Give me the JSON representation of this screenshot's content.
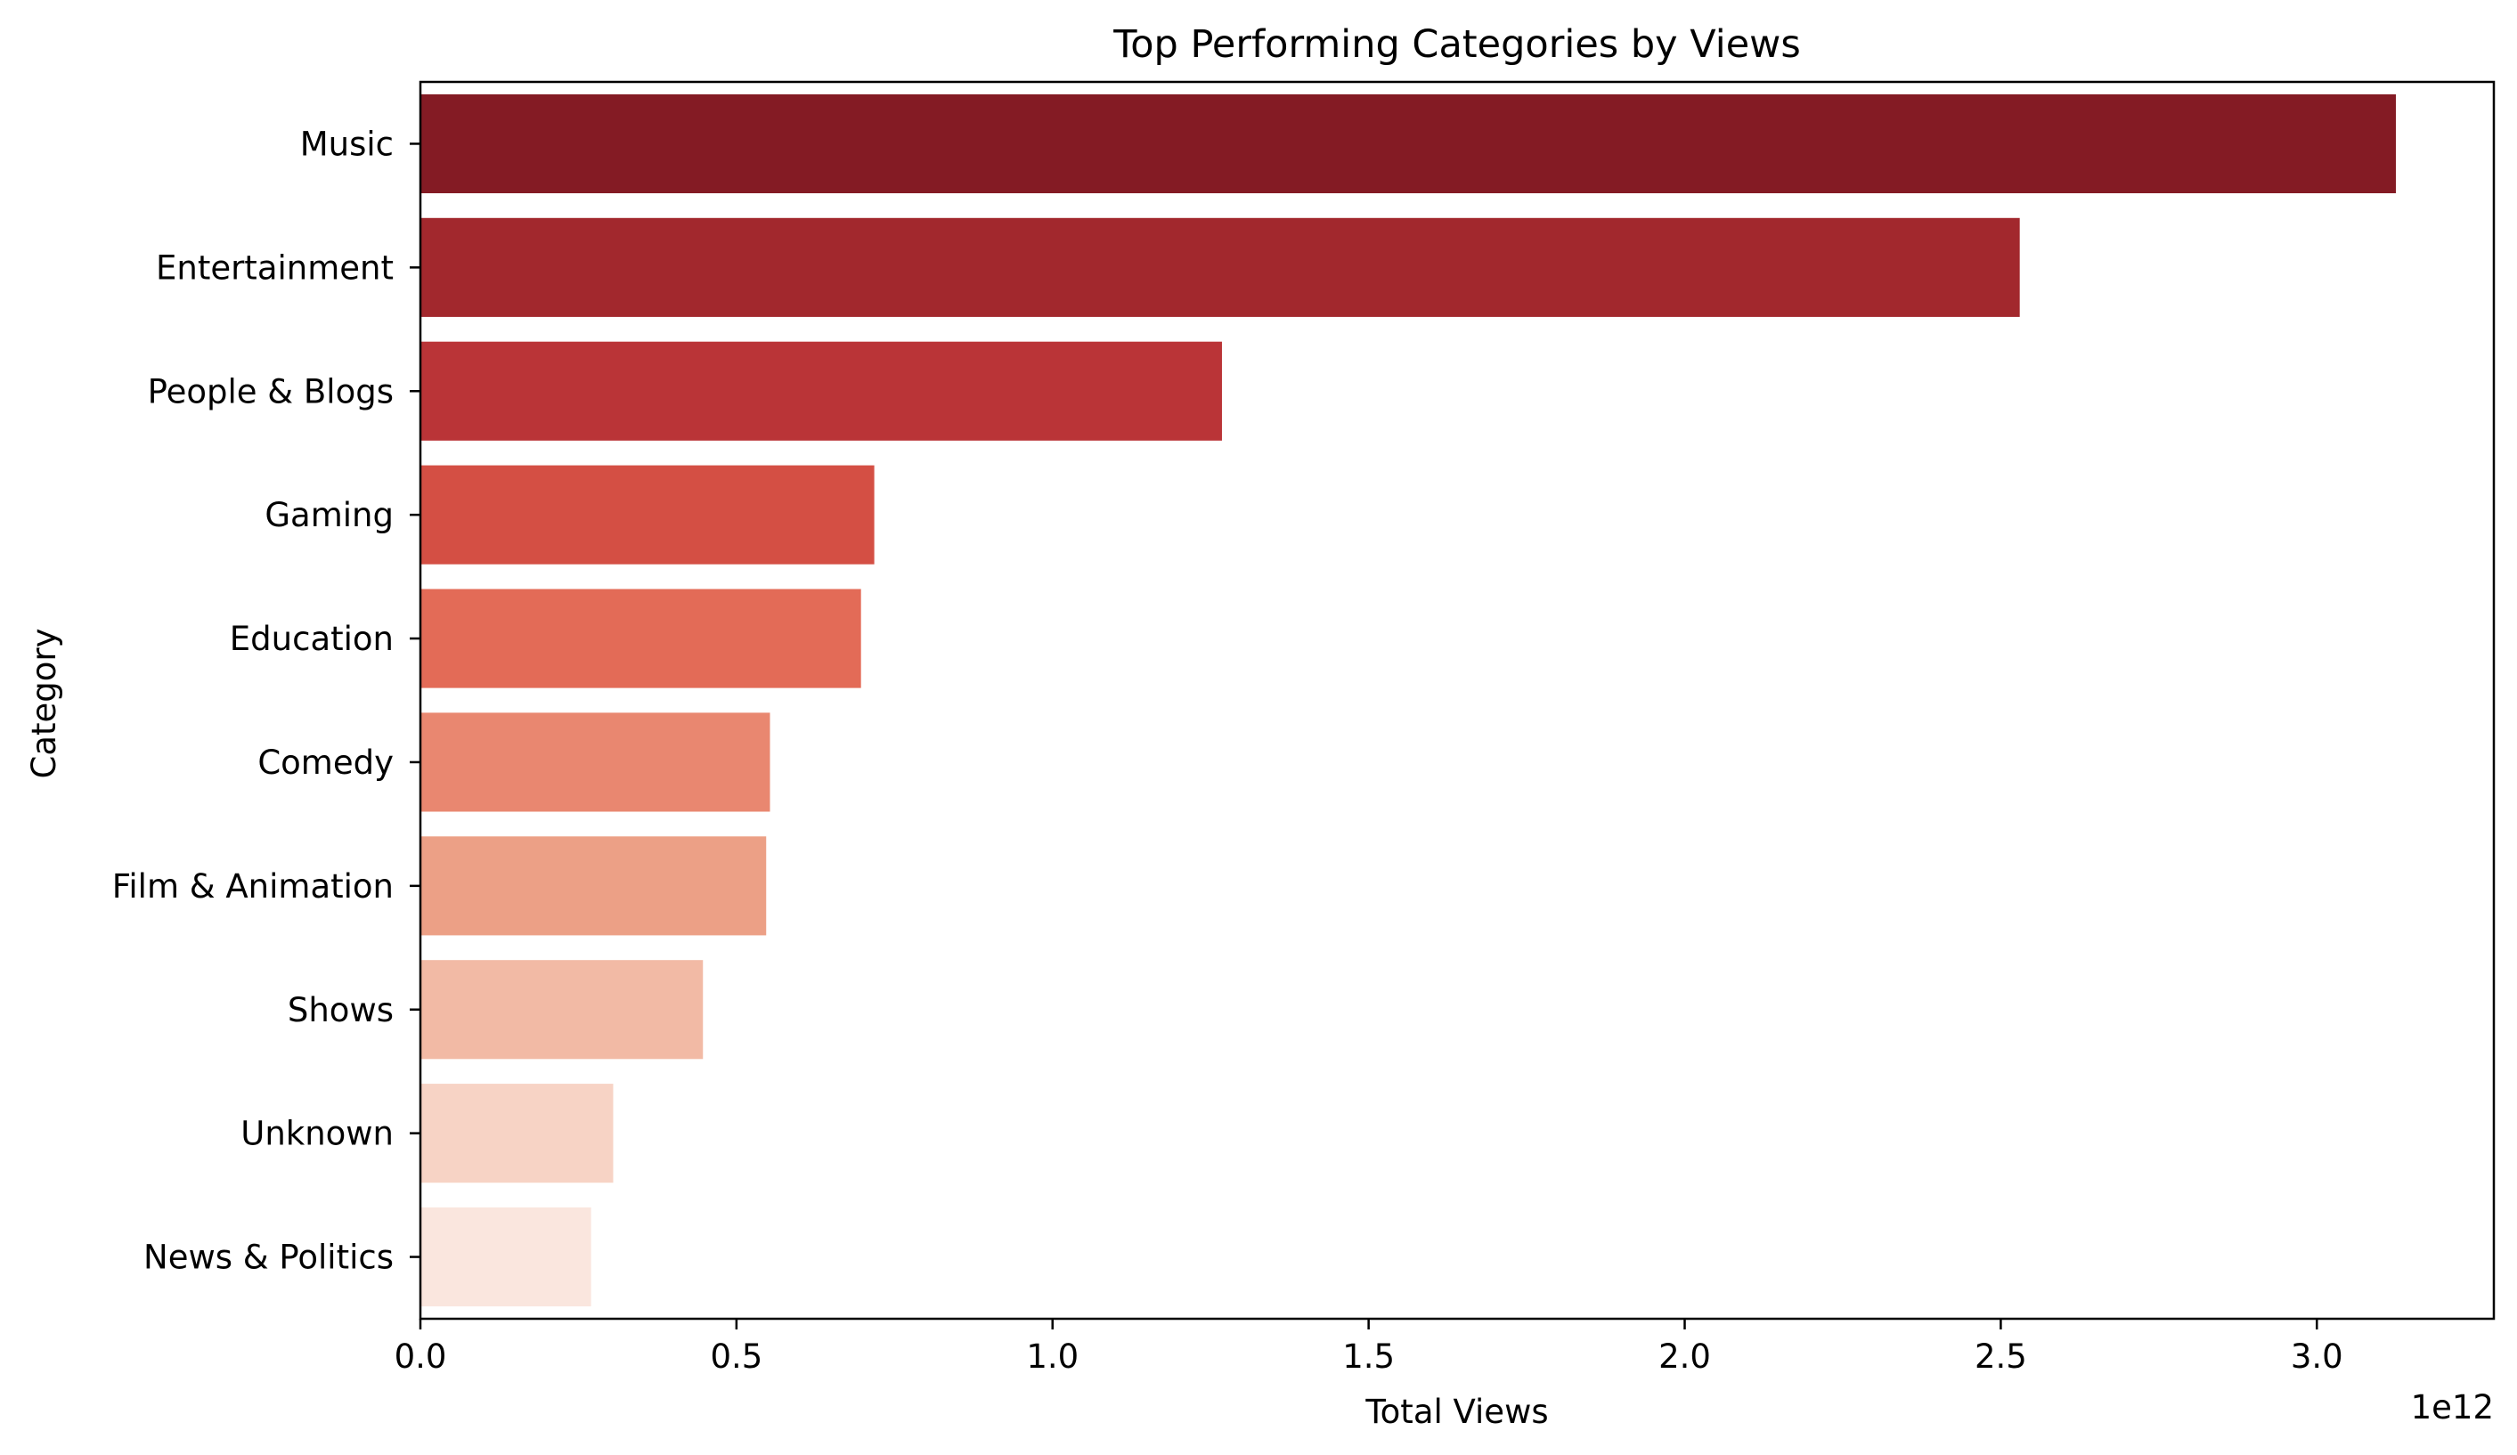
{
  "chart_data": {
    "type": "bar",
    "orientation": "horizontal",
    "title": "Top Performing Categories by Views",
    "xlabel": "Total Views",
    "ylabel": "Category",
    "x_offset_label": "1e12",
    "x_scale": 1000000000000,
    "xlim": [
      0,
      3.28
    ],
    "x_ticks": [
      0.0,
      0.5,
      1.0,
      1.5,
      2.0,
      2.5,
      3.0
    ],
    "x_tick_labels": [
      "0.0",
      "0.5",
      "1.0",
      "1.5",
      "2.0",
      "2.5",
      "3.0"
    ],
    "grid": false,
    "legend": "none",
    "categories": [
      "Music",
      "Entertainment",
      "People & Blogs",
      "Gaming",
      "Education",
      "Comedy",
      "Film & Animation",
      "Shows",
      "Unknown",
      "News & Politics"
    ],
    "values": [
      3.125,
      2.53,
      1.268,
      0.718,
      0.697,
      0.553,
      0.547,
      0.447,
      0.305,
      0.27
    ],
    "colors": [
      "#841b24",
      "#a2282d",
      "#ba3437",
      "#d44f44",
      "#e36b57",
      "#e98770",
      "#eca086",
      "#f2baa5",
      "#f7d3c5",
      "#fae6de"
    ]
  }
}
